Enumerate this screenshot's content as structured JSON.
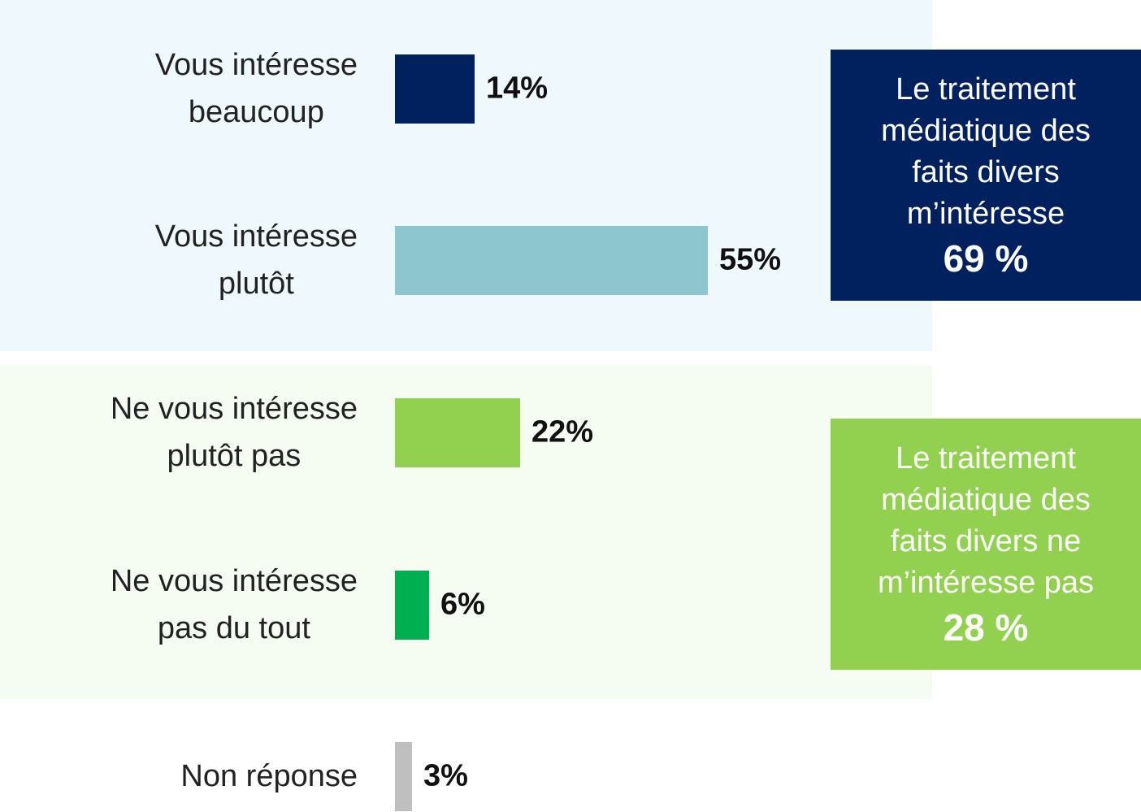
{
  "chart_data": {
    "type": "bar",
    "orientation": "horizontal",
    "categories": [
      [
        "Vous intéresse",
        "beaucoup"
      ],
      [
        "Vous intéresse",
        "plutôt"
      ],
      [
        "Ne vous intéresse",
        "plutôt pas"
      ],
      [
        "Ne vous intéresse",
        "pas du tout"
      ],
      [
        "Non réponse"
      ]
    ],
    "values": [
      14,
      55,
      22,
      6,
      3
    ],
    "value_labels": [
      "14%",
      "55%",
      "22%",
      "6%",
      "3%"
    ],
    "colors": [
      "#00215e",
      "#8dc6ce",
      "#92d050",
      "#00b050",
      "#bfbfbf"
    ],
    "xlim": [
      0,
      100
    ],
    "annotations": [
      {
        "lines": [
          "Le traitement",
          "médiatique des",
          "faits divers",
          "m’intéresse"
        ],
        "total": "69 %",
        "color": "#00215e"
      },
      {
        "lines": [
          "Le traitement",
          "médiatique des",
          "faits divers ne",
          "m’intéresse pas"
        ],
        "total": "28 %",
        "color": "#92d050"
      }
    ]
  }
}
